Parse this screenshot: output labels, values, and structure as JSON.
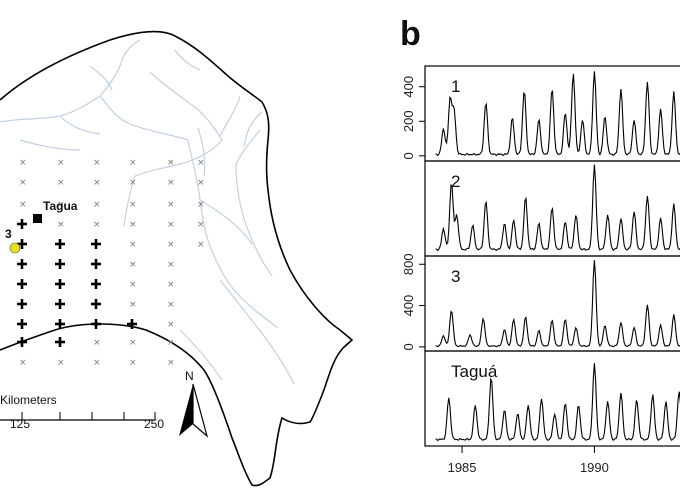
{
  "panel_letter": "b",
  "map": {
    "tagua_label": "Tagua",
    "site3_label": "3",
    "scale_label": "Kilometers",
    "scale_ticks": [
      "125",
      "250"
    ],
    "north_label": "N",
    "colors": {
      "river": "#c3d0e2",
      "boundary": "#000000",
      "site3": "#e6df1f"
    }
  },
  "chart_data": {
    "type": "line",
    "x_ticks": [
      "1985",
      "1990"
    ],
    "xlim": [
      1983.6,
      1993.8
    ],
    "line_color": "#000000",
    "panels": [
      {
        "label": "1",
        "y_ticks": [
          "0",
          "200",
          "400"
        ],
        "ylim": [
          -30,
          520
        ],
        "peaks": [
          {
            "t": 1984.3,
            "v": 150
          },
          {
            "t": 1984.55,
            "v": 320
          },
          {
            "t": 1984.7,
            "v": 250
          },
          {
            "t": 1985.9,
            "v": 300
          },
          {
            "t": 1986.9,
            "v": 210
          },
          {
            "t": 1987.35,
            "v": 370
          },
          {
            "t": 1987.9,
            "v": 200
          },
          {
            "t": 1988.4,
            "v": 380
          },
          {
            "t": 1988.9,
            "v": 240
          },
          {
            "t": 1989.2,
            "v": 470
          },
          {
            "t": 1989.55,
            "v": 200
          },
          {
            "t": 1990.0,
            "v": 480
          },
          {
            "t": 1990.4,
            "v": 220
          },
          {
            "t": 1991.0,
            "v": 380
          },
          {
            "t": 1991.5,
            "v": 200
          },
          {
            "t": 1992.0,
            "v": 420
          },
          {
            "t": 1992.5,
            "v": 260
          },
          {
            "t": 1993.0,
            "v": 360
          },
          {
            "t": 1993.5,
            "v": 410
          }
        ]
      },
      {
        "label": "2",
        "y_ticks": [],
        "ylim": [
          -30,
          520
        ],
        "peaks": [
          {
            "t": 1984.3,
            "v": 120
          },
          {
            "t": 1984.6,
            "v": 390
          },
          {
            "t": 1984.8,
            "v": 200
          },
          {
            "t": 1985.4,
            "v": 140
          },
          {
            "t": 1985.9,
            "v": 280
          },
          {
            "t": 1986.6,
            "v": 150
          },
          {
            "t": 1986.95,
            "v": 170
          },
          {
            "t": 1987.4,
            "v": 300
          },
          {
            "t": 1987.9,
            "v": 150
          },
          {
            "t": 1988.4,
            "v": 240
          },
          {
            "t": 1988.9,
            "v": 160
          },
          {
            "t": 1989.3,
            "v": 200
          },
          {
            "t": 1990.0,
            "v": 490
          },
          {
            "t": 1990.5,
            "v": 200
          },
          {
            "t": 1991.0,
            "v": 180
          },
          {
            "t": 1991.5,
            "v": 220
          },
          {
            "t": 1992.0,
            "v": 310
          },
          {
            "t": 1992.5,
            "v": 180
          },
          {
            "t": 1993.0,
            "v": 260
          },
          {
            "t": 1993.5,
            "v": 200
          }
        ]
      },
      {
        "label": "3",
        "y_ticks": [
          "0",
          "400",
          "800"
        ],
        "ylim": [
          -40,
          880
        ],
        "peaks": [
          {
            "t": 1984.3,
            "v": 100
          },
          {
            "t": 1984.6,
            "v": 350
          },
          {
            "t": 1985.3,
            "v": 110
          },
          {
            "t": 1985.8,
            "v": 270
          },
          {
            "t": 1986.6,
            "v": 160
          },
          {
            "t": 1986.95,
            "v": 260
          },
          {
            "t": 1987.4,
            "v": 280
          },
          {
            "t": 1987.9,
            "v": 150
          },
          {
            "t": 1988.4,
            "v": 250
          },
          {
            "t": 1988.9,
            "v": 260
          },
          {
            "t": 1989.3,
            "v": 180
          },
          {
            "t": 1990.0,
            "v": 830
          },
          {
            "t": 1990.4,
            "v": 200
          },
          {
            "t": 1991.0,
            "v": 230
          },
          {
            "t": 1991.5,
            "v": 180
          },
          {
            "t": 1992.0,
            "v": 400
          },
          {
            "t": 1992.5,
            "v": 200
          },
          {
            "t": 1993.0,
            "v": 300
          },
          {
            "t": 1993.5,
            "v": 220
          }
        ]
      },
      {
        "label": "Taguá",
        "y_ticks": [],
        "ylim": [
          -30,
          520
        ],
        "peaks": [
          {
            "t": 1984.5,
            "v": 240
          },
          {
            "t": 1985.5,
            "v": 200
          },
          {
            "t": 1986.1,
            "v": 360
          },
          {
            "t": 1986.6,
            "v": 170
          },
          {
            "t": 1987.1,
            "v": 150
          },
          {
            "t": 1987.5,
            "v": 200
          },
          {
            "t": 1988.0,
            "v": 240
          },
          {
            "t": 1988.5,
            "v": 150
          },
          {
            "t": 1988.9,
            "v": 210
          },
          {
            "t": 1989.4,
            "v": 200
          },
          {
            "t": 1990.0,
            "v": 440
          },
          {
            "t": 1990.5,
            "v": 220
          },
          {
            "t": 1991.0,
            "v": 270
          },
          {
            "t": 1991.6,
            "v": 230
          },
          {
            "t": 1992.2,
            "v": 260
          },
          {
            "t": 1992.7,
            "v": 220
          },
          {
            "t": 1993.2,
            "v": 280
          }
        ]
      }
    ]
  }
}
